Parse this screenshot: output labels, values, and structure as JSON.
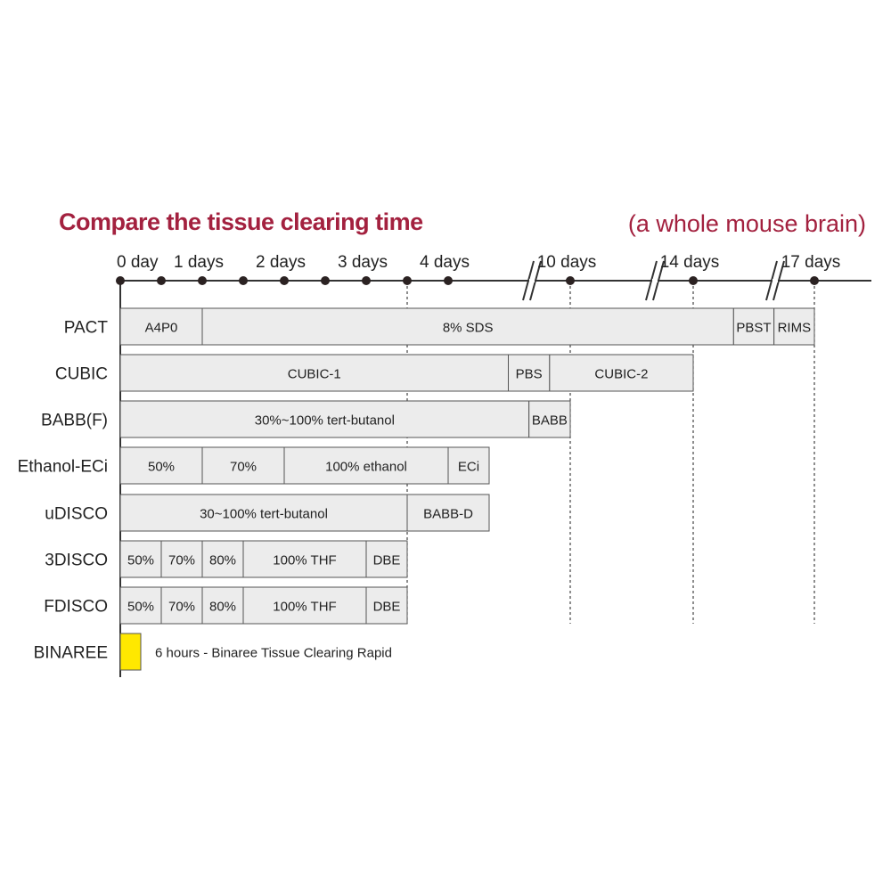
{
  "chart_data": {
    "type": "gantt",
    "title": "Compare the tissue clearing time",
    "subtitle": "(a whole mouse brain)",
    "x_unit": "days",
    "x_scale": "broken axis",
    "x_ticks": [
      {
        "value": 0,
        "label": "0 day"
      },
      {
        "value": 0.5,
        "label": ""
      },
      {
        "value": 1,
        "label": "1 days"
      },
      {
        "value": 1.5,
        "label": ""
      },
      {
        "value": 2,
        "label": "2 days"
      },
      {
        "value": 2.5,
        "label": ""
      },
      {
        "value": 3,
        "label": "3 days"
      },
      {
        "value": 3.5,
        "label": ""
      },
      {
        "value": 4,
        "label": "4 days"
      },
      {
        "value": 10,
        "label": "10 days"
      },
      {
        "value": 14,
        "label": "14 days"
      },
      {
        "value": 17,
        "label": "17 days"
      }
    ],
    "axis_breaks": [
      [
        4.5,
        10
      ],
      [
        10,
        14
      ],
      [
        14,
        17
      ]
    ],
    "reference_lines": [
      3.5,
      10,
      14,
      17
    ],
    "colors": {
      "title": "#a3213f",
      "segment": "#ececec",
      "highlight": "#ffe800",
      "axis": "#333333"
    },
    "rows": [
      {
        "method": "PACT",
        "segments": [
          {
            "label": "A4P0",
            "start": 0,
            "end": 1
          },
          {
            "label": "8% SDS",
            "start": 1,
            "end": 15
          },
          {
            "label": "PBST",
            "start": 15,
            "end": 16
          },
          {
            "label": "RIMS",
            "start": 16,
            "end": 17
          }
        ]
      },
      {
        "method": "CUBIC",
        "segments": [
          {
            "label": "CUBIC-1",
            "start": 0,
            "end": 5.8
          },
          {
            "label": "PBS",
            "start": 5.8,
            "end": 8.6
          },
          {
            "label": "CUBIC-2",
            "start": 8.6,
            "end": 14
          }
        ]
      },
      {
        "method": "BABB(F)",
        "segments": [
          {
            "label": "30%~100% tert-butanol",
            "start": 0,
            "end": 7.2
          },
          {
            "label": "BABB",
            "start": 7.2,
            "end": 10
          }
        ]
      },
      {
        "method": "Ethanol-ECi",
        "segments": [
          {
            "label": "50%",
            "start": 0,
            "end": 1
          },
          {
            "label": "70%",
            "start": 1,
            "end": 2
          },
          {
            "label": "100% ethanol",
            "start": 2,
            "end": 4
          },
          {
            "label": "ECi",
            "start": 4,
            "end": 4.5
          }
        ]
      },
      {
        "method": "uDISCO",
        "segments": [
          {
            "label": "30~100% tert-butanol",
            "start": 0,
            "end": 3.5
          },
          {
            "label": "BABB-D",
            "start": 3.5,
            "end": 4.5
          }
        ]
      },
      {
        "method": "3DISCO",
        "segments": [
          {
            "label": "50%",
            "start": 0,
            "end": 0.5
          },
          {
            "label": "70%",
            "start": 0.5,
            "end": 1
          },
          {
            "label": "80%",
            "start": 1,
            "end": 1.5
          },
          {
            "label": "100% THF",
            "start": 1.5,
            "end": 3
          },
          {
            "label": "DBE",
            "start": 3,
            "end": 3.5
          }
        ]
      },
      {
        "method": "FDISCO",
        "segments": [
          {
            "label": "50%",
            "start": 0,
            "end": 0.5
          },
          {
            "label": "70%",
            "start": 0.5,
            "end": 1
          },
          {
            "label": "80%",
            "start": 1,
            "end": 1.5
          },
          {
            "label": "100% THF",
            "start": 1.5,
            "end": 3
          },
          {
            "label": "DBE",
            "start": 3,
            "end": 3.5
          }
        ]
      },
      {
        "method": "BINAREE",
        "highlight": true,
        "segments": [
          {
            "label": "",
            "start": 0,
            "end": 0.25
          }
        ],
        "annotation": "6 hours - Binaree Tissue Clearing Rapid"
      }
    ]
  }
}
